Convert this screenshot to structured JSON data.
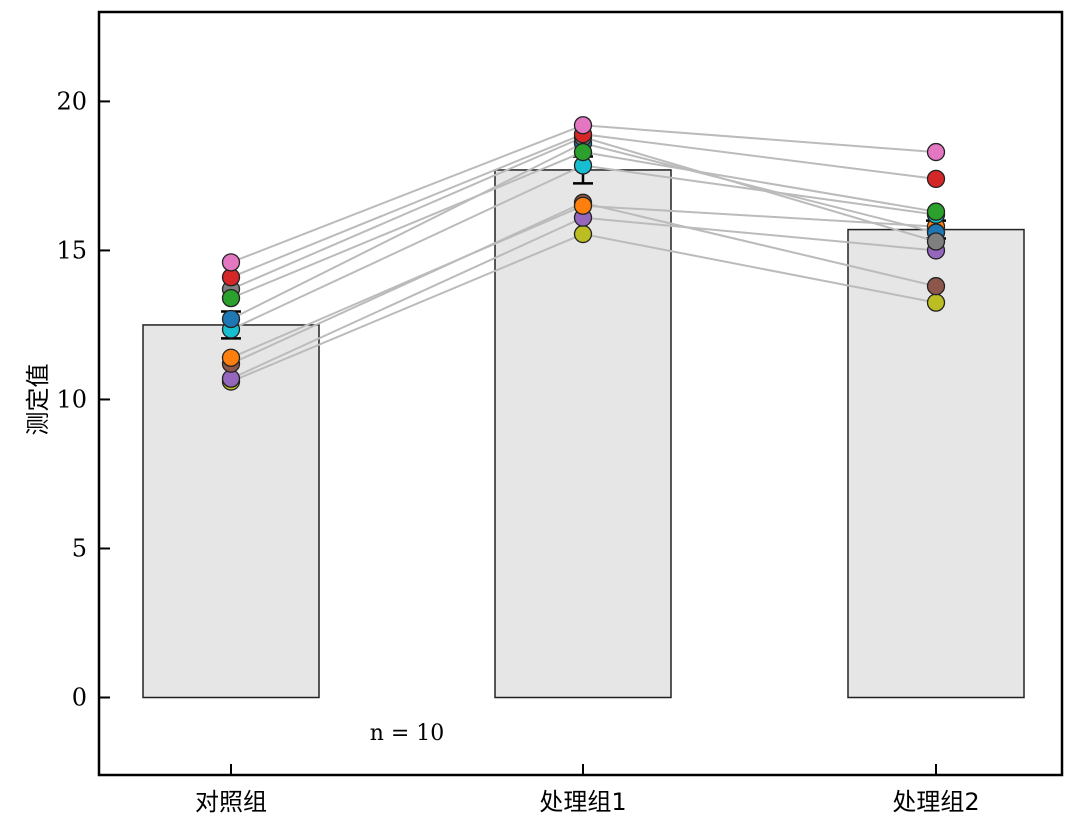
{
  "chart_data": {
    "type": "bar",
    "title": "",
    "xlabel": "",
    "ylabel": "测定值",
    "ylim": [
      -2.6,
      23
    ],
    "yticks": [
      0,
      5,
      10,
      15,
      20
    ],
    "grid": false,
    "categories": [
      "对照组",
      "处理组1",
      "处理组2"
    ],
    "values": [
      12.5,
      17.7,
      15.7
    ],
    "error": [
      0.45,
      0.45,
      0.3
    ],
    "bar_color": "#e6e6e6",
    "line_color": "#bbbbbb",
    "annotation": "n = 10",
    "subjects": [
      {
        "color": "#e377c2",
        "values": [
          14.6,
          19.2,
          18.3
        ]
      },
      {
        "color": "#d62728",
        "values": [
          14.1,
          18.9,
          17.4
        ]
      },
      {
        "color": "#2ca02c",
        "values": [
          13.4,
          18.3,
          16.3
        ]
      },
      {
        "color": "#7f7f7f",
        "values": [
          13.7,
          18.8,
          15.3
        ]
      },
      {
        "color": "#1f77b4",
        "values": [
          12.7,
          18.6,
          15.6
        ]
      },
      {
        "color": "#17becf",
        "values": [
          12.35,
          17.85,
          16.2
        ]
      },
      {
        "color": "#ff7f0e",
        "values": [
          11.4,
          16.5,
          15.8
        ]
      },
      {
        "color": "#8c564b",
        "values": [
          11.2,
          16.6,
          13.8
        ]
      },
      {
        "color": "#9467bd",
        "values": [
          10.7,
          16.1,
          15.0
        ]
      },
      {
        "color": "#bcbd22",
        "values": [
          10.6,
          15.55,
          13.25
        ]
      }
    ]
  }
}
